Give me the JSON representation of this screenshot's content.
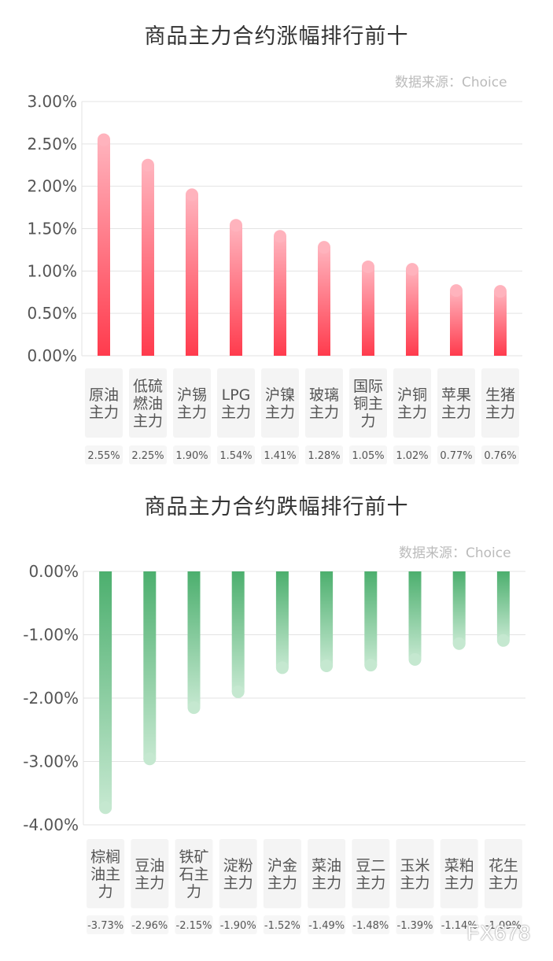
{
  "chart_data": [
    {
      "type": "bar",
      "title": "商品主力合约涨幅排行前十",
      "source": "数据来源：Choice",
      "categories": [
        "原油主力",
        "低硫燃油主力",
        "沪锡主力",
        "LPG主力",
        "沪镍主力",
        "玻璃主力",
        "国际铜主力",
        "沪铜主力",
        "苹果主力",
        "生猪主力"
      ],
      "category_lines": [
        [
          "原油",
          "主力"
        ],
        [
          "低硫",
          "燃油",
          "主力"
        ],
        [
          "沪锡",
          "主力"
        ],
        [
          "LPG",
          "主力"
        ],
        [
          "沪镍",
          "主力"
        ],
        [
          "玻璃",
          "主力"
        ],
        [
          "国际",
          "铜主",
          "力"
        ],
        [
          "沪铜",
          "主力"
        ],
        [
          "苹果",
          "主力"
        ],
        [
          "生猪",
          "主力"
        ]
      ],
      "values": [
        2.55,
        2.25,
        1.9,
        1.54,
        1.41,
        1.28,
        1.05,
        1.02,
        0.77,
        0.76
      ],
      "value_labels": [
        "2.55%",
        "2.25%",
        "1.90%",
        "1.54%",
        "1.41%",
        "1.28%",
        "1.05%",
        "1.02%",
        "0.77%",
        "0.76%"
      ],
      "yticks": [
        "3.00%",
        "2.50%",
        "2.00%",
        "1.50%",
        "1.00%",
        "0.50%",
        "0.00%"
      ],
      "ylim": [
        0,
        3
      ],
      "grid": true,
      "colors": {
        "bar_top": "#ffb3bd",
        "bar_bottom": "#ff3b4d"
      }
    },
    {
      "type": "bar",
      "title": "商品主力合约跌幅排行前十",
      "source": "数据来源：Choice",
      "categories": [
        "棕榈油主力",
        "豆油主力",
        "铁矿石主力",
        "淀粉主力",
        "沪金主力",
        "菜油主力",
        "豆二主力",
        "玉米主力",
        "菜粕主力",
        "花生主力"
      ],
      "category_lines": [
        [
          "棕榈",
          "油主",
          "力"
        ],
        [
          "豆油",
          "主力"
        ],
        [
          "铁矿",
          "石主",
          "力"
        ],
        [
          "淀粉",
          "主力"
        ],
        [
          "沪金",
          "主力"
        ],
        [
          "菜油",
          "主力"
        ],
        [
          "豆二",
          "主力"
        ],
        [
          "玉米",
          "主力"
        ],
        [
          "菜粕",
          "主力"
        ],
        [
          "花生",
          "主力"
        ]
      ],
      "values": [
        -3.73,
        -2.96,
        -2.15,
        -1.9,
        -1.52,
        -1.49,
        -1.48,
        -1.39,
        -1.14,
        -1.09
      ],
      "value_labels": [
        "-3.73%",
        "-2.96%",
        "-2.15%",
        "-1.90%",
        "-1.52%",
        "-1.49%",
        "-1.48%",
        "-1.39%",
        "-1.14%",
        "-1.09%"
      ],
      "yticks": [
        "0.00%",
        "-1.00%",
        "-2.00%",
        "-3.00%",
        "-4.00%"
      ],
      "ylim": [
        -4,
        0
      ],
      "grid": true,
      "colors": {
        "bar_top": "#4caf6e",
        "bar_bottom": "#c5e8d0"
      }
    }
  ],
  "watermark": "FX678"
}
